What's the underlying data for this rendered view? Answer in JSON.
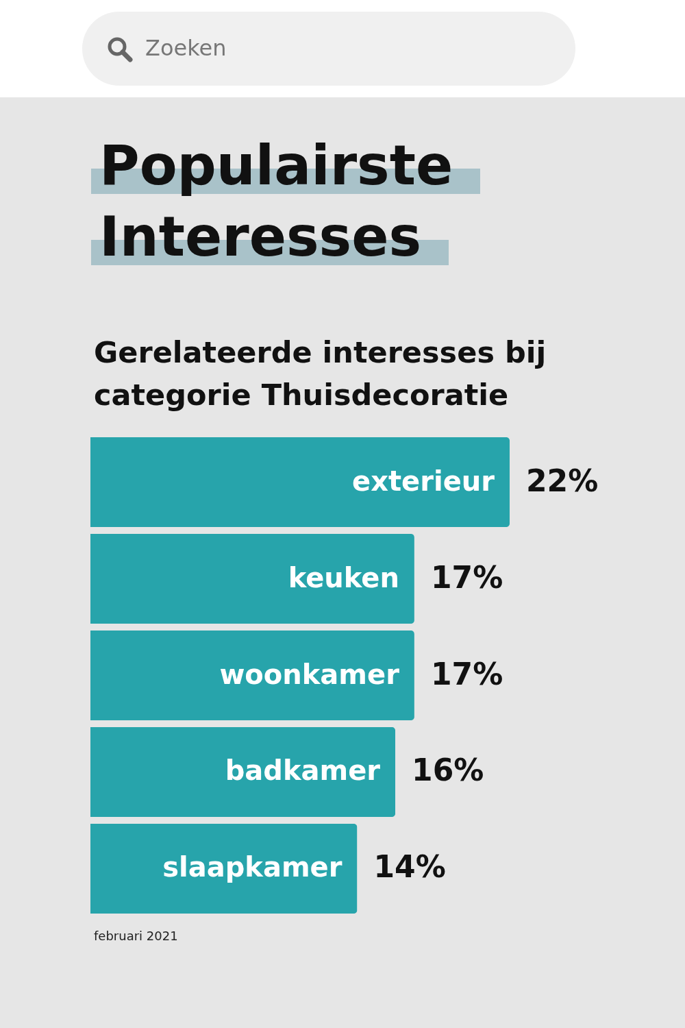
{
  "chart_data": {
    "type": "bar",
    "orientation": "horizontal",
    "title": "Populairste Interesses",
    "subtitle": "Gerelateerde interesses bij categorie Thuisdecoratie",
    "categories": [
      "exterieur",
      "keuken",
      "woonkamer",
      "badkamer",
      "slaapkamer"
    ],
    "values": [
      22,
      17,
      17,
      16,
      14
    ],
    "value_labels": [
      "22%",
      "17%",
      "17%",
      "16%",
      "14%"
    ],
    "color": "#27a4ab",
    "annotations": [
      "Zoeken",
      "februari 2021"
    ]
  }
}
